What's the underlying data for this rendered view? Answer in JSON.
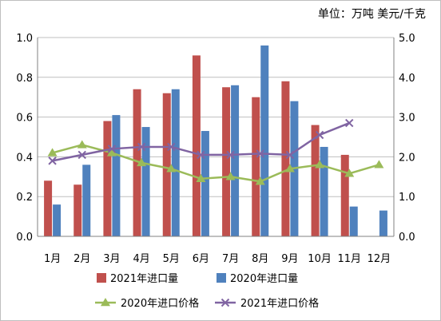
{
  "chart_data": {
    "type": "bar",
    "title": "",
    "unit_label": "单位：万吨 美元/千克",
    "categories": [
      "1月",
      "2月",
      "3月",
      "4月",
      "5月",
      "6月",
      "7月",
      "8月",
      "9月",
      "10月",
      "11月",
      "12月"
    ],
    "series": [
      {
        "name": "2021年进口量",
        "type": "bar",
        "axis": "left",
        "color": "#c0504d",
        "values": [
          0.28,
          0.26,
          0.58,
          0.74,
          0.72,
          0.91,
          0.75,
          0.7,
          0.78,
          0.56,
          0.41,
          null
        ]
      },
      {
        "name": "2020年进口量",
        "type": "bar",
        "axis": "left",
        "color": "#4f81bd",
        "values": [
          0.16,
          0.36,
          0.61,
          0.55,
          0.74,
          0.53,
          0.76,
          0.96,
          0.68,
          0.45,
          0.15,
          0.13
        ]
      },
      {
        "name": "2020年进口价格",
        "type": "line",
        "axis": "right",
        "marker": "triangle",
        "color": "#9bbb59",
        "values": [
          2.1,
          2.3,
          2.1,
          1.85,
          1.7,
          1.45,
          1.5,
          1.38,
          1.7,
          1.8,
          1.58,
          1.8
        ]
      },
      {
        "name": "2021年进口价格",
        "type": "line",
        "axis": "right",
        "marker": "x",
        "color": "#8064a2",
        "values": [
          1.9,
          2.05,
          2.2,
          2.25,
          2.25,
          2.05,
          2.05,
          2.08,
          2.05,
          2.55,
          2.85,
          null
        ]
      }
    ],
    "y_left": {
      "min": 0,
      "max": 1.0,
      "step": 0.2,
      "ticks": [
        "0.0",
        "0.2",
        "0.4",
        "0.6",
        "0.8",
        "1.0"
      ]
    },
    "y_right": {
      "min": 0,
      "max": 5.0,
      "step": 1.0,
      "ticks": [
        "0.0",
        "1.0",
        "2.0",
        "3.0",
        "4.0",
        "5.0"
      ]
    },
    "grid": true,
    "legend_position": "bottom"
  }
}
